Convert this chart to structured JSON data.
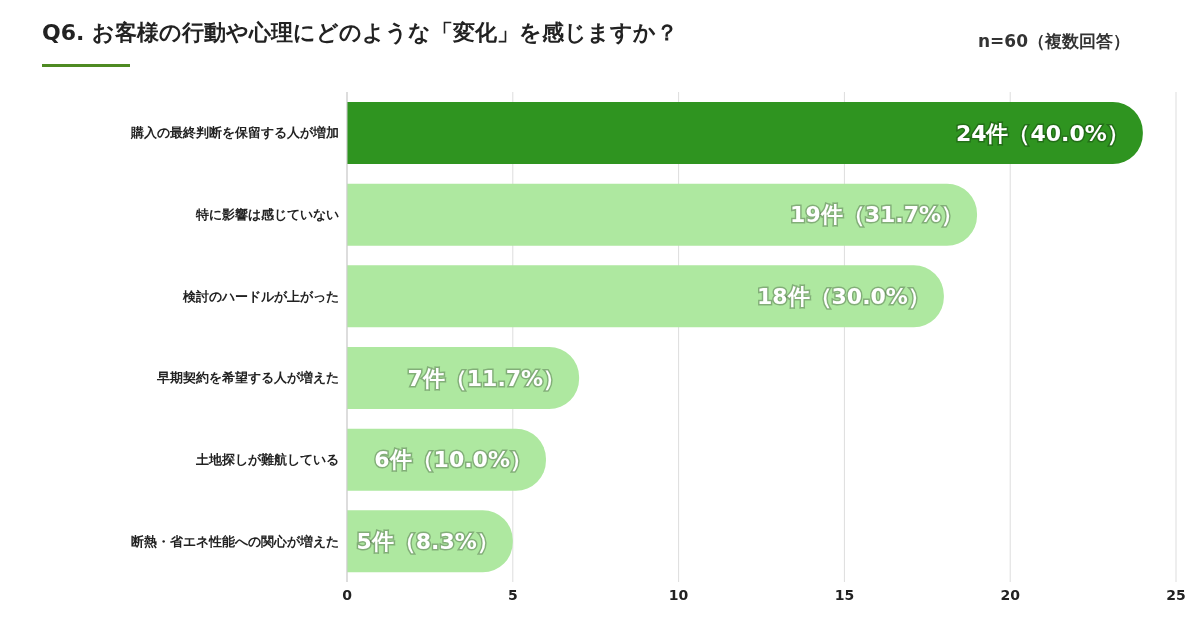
{
  "chart_data": {
    "type": "bar",
    "orientation": "horizontal",
    "title": "Q6. お客様の行動や心理にどのような「変化」を感じますか？",
    "annotations": [
      "n=60（複数回答）"
    ],
    "categories": [
      "購入の最終判断を保留する人が増加",
      "特に影響は感じていない",
      "検討のハードルが上がった",
      "早期契約を希望する人が増えた",
      "土地探しが難航している",
      "断熱・省エネ性能への関心が増えた"
    ],
    "values": [
      24,
      19,
      18,
      7,
      6,
      5
    ],
    "colors": [
      "#2f9420",
      "#aee8a0",
      "#aee8a0",
      "#aee8a0",
      "#aee8a0",
      "#aee8a0"
    ],
    "value_labels": [
      "24件（40.0%）",
      "19件（31.7%）",
      "18件（30.0%）",
      "7件（11.7%）",
      "6件（10.0%）",
      "5件（8.3%）"
    ],
    "xlim": [
      0,
      25
    ],
    "xticks": [
      0,
      5,
      10,
      15,
      20,
      25
    ],
    "grid": "x",
    "legend": false
  }
}
